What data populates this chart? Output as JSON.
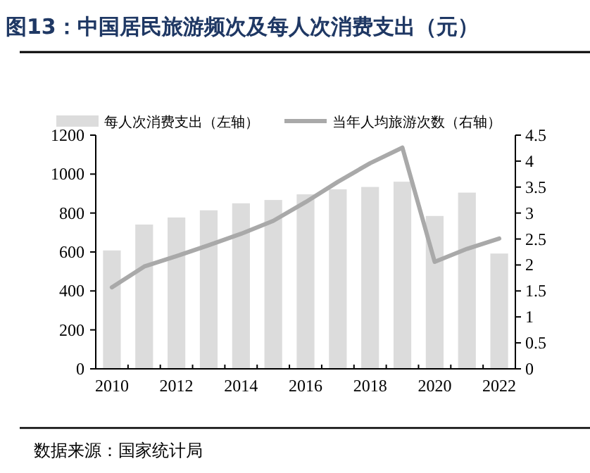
{
  "chart_data": {
    "type": "bar",
    "title": "图13：中国居民旅游频次及每人次消费支出（元）",
    "categories": [
      "2010",
      null,
      "2012",
      null,
      "2014",
      null,
      "2016",
      null,
      "2018",
      null,
      "2020",
      null,
      "2022"
    ],
    "ylim": [
      0,
      1200
    ],
    "yticks": [
      0,
      200,
      400,
      600,
      800,
      1000,
      1200
    ],
    "y2lim": [
      0,
      4.5
    ],
    "y2ticks": [
      0,
      0.5,
      1,
      1.5,
      2,
      2.5,
      3,
      3.5,
      4,
      4.5
    ],
    "series": [
      {
        "name": "每人次消费支出（左轴）",
        "color": "#dcdcdc",
        "values": [
          608,
          741,
          777,
          814,
          850,
          867,
          896,
          922,
          934,
          961,
          785,
          905,
          592
        ]
      },
      {
        "name": "当年人均旅游次数（右轴）",
        "type": "line",
        "axis": "y2",
        "color": "#a9a9a9",
        "values": [
          1.57,
          1.97,
          2.17,
          2.38,
          2.6,
          2.85,
          3.21,
          3.6,
          3.96,
          4.26,
          2.06,
          2.31,
          2.51
        ]
      }
    ],
    "legend": "top",
    "grid": false,
    "annotations": [
      "数据来源：国家统计局"
    ]
  }
}
